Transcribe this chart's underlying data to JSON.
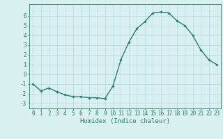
{
  "x": [
    0,
    1,
    2,
    3,
    4,
    5,
    6,
    7,
    8,
    9,
    10,
    11,
    12,
    13,
    14,
    15,
    16,
    17,
    18,
    19,
    20,
    21,
    22,
    23
  ],
  "y": [
    -1.0,
    -1.7,
    -1.4,
    -1.8,
    -2.1,
    -2.3,
    -2.3,
    -2.4,
    -2.4,
    -2.5,
    -1.2,
    1.5,
    3.3,
    4.7,
    5.4,
    6.3,
    6.4,
    6.3,
    5.5,
    5.0,
    4.0,
    2.5,
    1.5,
    1.0
  ],
  "line_color": "#2d7d6b",
  "marker": "D",
  "marker_size": 1.8,
  "line_width": 1.0,
  "bg_color": "#d8f0f0",
  "grid_color": "#b8d8d8",
  "axes_color": "#2d7d6b",
  "tick_label_color": "#2d7d6b",
  "xlabel": "Humidex (Indice chaleur)",
  "xlabel_color": "#2d7d6b",
  "xlim": [
    -0.5,
    23.5
  ],
  "ylim": [
    -3.5,
    7.2
  ],
  "yticks": [
    -3,
    -2,
    -1,
    0,
    1,
    2,
    3,
    4,
    5,
    6
  ],
  "xticks": [
    0,
    1,
    2,
    3,
    4,
    5,
    6,
    7,
    8,
    9,
    10,
    11,
    12,
    13,
    14,
    15,
    16,
    17,
    18,
    19,
    20,
    21,
    22,
    23
  ],
  "xlabel_fontsize": 6.5,
  "tick_fontsize": 5.5
}
